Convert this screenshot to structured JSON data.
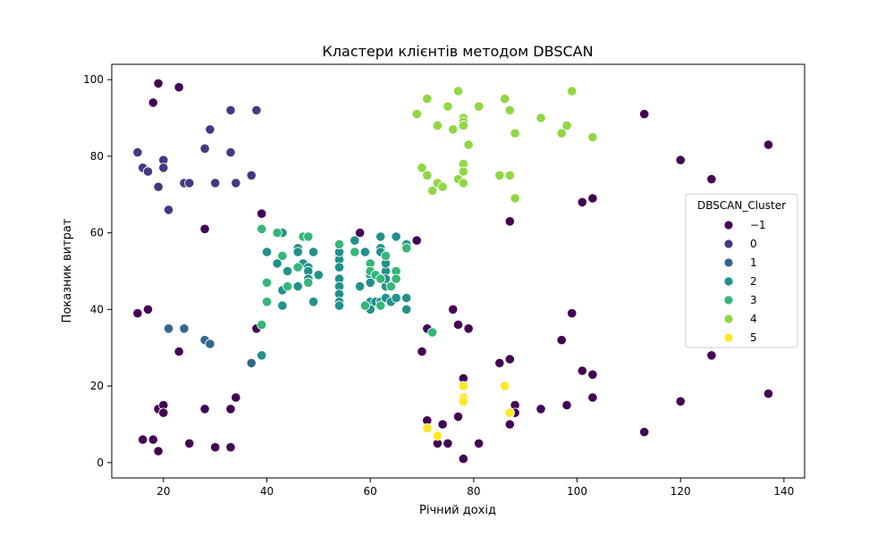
{
  "chart_data": {
    "type": "scatter",
    "title": "Кластери клієнтів методом DBSCAN",
    "xlabel": "Річний дохід",
    "ylabel": "Показник витрат",
    "xlim": [
      10,
      144
    ],
    "ylim": [
      -4,
      104
    ],
    "xticks": [
      20,
      40,
      60,
      80,
      100,
      120,
      140
    ],
    "yticks": [
      0,
      20,
      40,
      60,
      80,
      100
    ],
    "grid": false,
    "legend": {
      "title": "DBSCAN_Cluster",
      "placement": "center-right"
    },
    "series": [
      {
        "name": "−1",
        "color": "#440154",
        "points": [
          [
            15,
            39
          ],
          [
            16,
            6
          ],
          [
            17,
            40
          ],
          [
            18,
            6
          ],
          [
            18,
            94
          ],
          [
            19,
            3
          ],
          [
            19,
            14
          ],
          [
            19,
            99
          ],
          [
            20,
            15
          ],
          [
            20,
            13
          ],
          [
            23,
            98
          ],
          [
            23,
            29
          ],
          [
            25,
            5
          ],
          [
            28,
            14
          ],
          [
            28,
            61
          ],
          [
            30,
            4
          ],
          [
            33,
            4
          ],
          [
            33,
            14
          ],
          [
            34,
            17
          ],
          [
            38,
            35
          ],
          [
            39,
            65
          ],
          [
            58,
            60
          ],
          [
            69,
            58
          ],
          [
            70,
            29
          ],
          [
            71,
            35
          ],
          [
            71,
            11
          ],
          [
            73,
            5
          ],
          [
            74,
            10
          ],
          [
            75,
            5
          ],
          [
            76,
            40
          ],
          [
            77,
            36
          ],
          [
            77,
            12
          ],
          [
            78,
            22
          ],
          [
            78,
            1
          ],
          [
            79,
            35
          ],
          [
            81,
            5
          ],
          [
            85,
            26
          ],
          [
            87,
            27
          ],
          [
            87,
            10
          ],
          [
            87,
            63
          ],
          [
            88,
            15
          ],
          [
            88,
            13
          ],
          [
            93,
            14
          ],
          [
            97,
            32
          ],
          [
            98,
            15
          ],
          [
            99,
            39
          ],
          [
            101,
            68
          ],
          [
            101,
            24
          ],
          [
            103,
            69
          ],
          [
            103,
            23
          ],
          [
            103,
            17
          ],
          [
            113,
            91
          ],
          [
            113,
            8
          ],
          [
            120,
            79
          ],
          [
            120,
            16
          ],
          [
            126,
            74
          ],
          [
            126,
            28
          ],
          [
            137,
            83
          ],
          [
            137,
            18
          ]
        ]
      },
      {
        "name": "0",
        "color": "#443983",
        "points": [
          [
            15,
            81
          ],
          [
            16,
            77
          ],
          [
            17,
            76
          ],
          [
            19,
            72
          ],
          [
            20,
            79
          ],
          [
            20,
            77
          ],
          [
            21,
            66
          ],
          [
            24,
            73
          ],
          [
            25,
            73
          ],
          [
            28,
            82
          ],
          [
            29,
            87
          ],
          [
            30,
            73
          ],
          [
            33,
            92
          ],
          [
            33,
            81
          ],
          [
            34,
            73
          ],
          [
            37,
            75
          ],
          [
            38,
            92
          ]
        ]
      },
      {
        "name": "1",
        "color": "#31688e",
        "points": [
          [
            21,
            35
          ],
          [
            24,
            35
          ],
          [
            28,
            32
          ],
          [
            29,
            31
          ],
          [
            37,
            26
          ]
        ]
      },
      {
        "name": "2",
        "color": "#21918c",
        "points": [
          [
            39,
            28
          ],
          [
            40,
            55
          ],
          [
            42,
            52
          ],
          [
            43,
            60
          ],
          [
            43,
            45
          ],
          [
            43,
            41
          ],
          [
            44,
            50
          ],
          [
            46,
            56
          ],
          [
            46,
            46
          ],
          [
            46,
            55
          ],
          [
            47,
            52
          ],
          [
            48,
            51
          ],
          [
            48,
            50
          ],
          [
            48,
            48
          ],
          [
            48,
            59
          ],
          [
            49,
            42
          ],
          [
            49,
            55
          ],
          [
            50,
            49
          ],
          [
            54,
            54
          ],
          [
            54,
            53
          ],
          [
            54,
            51
          ],
          [
            54,
            48
          ],
          [
            54,
            46
          ],
          [
            54,
            44
          ],
          [
            54,
            42
          ],
          [
            54,
            41
          ],
          [
            54,
            55
          ],
          [
            57,
            58
          ],
          [
            58,
            46
          ],
          [
            59,
            55
          ],
          [
            60,
            49
          ],
          [
            60,
            47
          ],
          [
            60,
            42
          ],
          [
            60,
            40
          ],
          [
            61,
            42
          ],
          [
            62,
            56
          ],
          [
            62,
            59
          ],
          [
            62,
            55
          ],
          [
            62,
            42
          ],
          [
            63,
            50
          ],
          [
            63,
            52
          ],
          [
            63,
            46
          ],
          [
            63,
            43
          ],
          [
            63,
            48
          ],
          [
            64,
            42
          ],
          [
            65,
            43
          ],
          [
            65,
            59
          ],
          [
            67,
            57
          ],
          [
            67,
            56
          ],
          [
            67,
            43
          ],
          [
            67,
            40
          ]
        ]
      },
      {
        "name": "3",
        "color": "#35b779",
        "points": [
          [
            39,
            61
          ],
          [
            39,
            36
          ],
          [
            40,
            47
          ],
          [
            40,
            42
          ],
          [
            42,
            60
          ],
          [
            43,
            54
          ],
          [
            44,
            46
          ],
          [
            46,
            51
          ],
          [
            47,
            59
          ],
          [
            48,
            47
          ],
          [
            48,
            59
          ],
          [
            54,
            57
          ],
          [
            57,
            55
          ],
          [
            59,
            41
          ],
          [
            60,
            52
          ],
          [
            60,
            50
          ],
          [
            61,
            49
          ],
          [
            62,
            41
          ],
          [
            62,
            48
          ],
          [
            63,
            54
          ],
          [
            64,
            46
          ],
          [
            65,
            50
          ],
          [
            65,
            48
          ],
          [
            67,
            56
          ],
          [
            72,
            34
          ]
        ]
      },
      {
        "name": "4",
        "color": "#90d743",
        "points": [
          [
            69,
            91
          ],
          [
            70,
            77
          ],
          [
            71,
            95
          ],
          [
            71,
            75
          ],
          [
            72,
            71
          ],
          [
            73,
            88
          ],
          [
            73,
            73
          ],
          [
            74,
            72
          ],
          [
            75,
            93
          ],
          [
            76,
            87
          ],
          [
            77,
            97
          ],
          [
            77,
            74
          ],
          [
            78,
            90
          ],
          [
            78,
            89
          ],
          [
            78,
            88
          ],
          [
            78,
            78
          ],
          [
            78,
            76
          ],
          [
            78,
            73
          ],
          [
            79,
            83
          ],
          [
            81,
            93
          ],
          [
            85,
            75
          ],
          [
            86,
            95
          ],
          [
            87,
            92
          ],
          [
            87,
            75
          ],
          [
            88,
            86
          ],
          [
            88,
            69
          ],
          [
            93,
            90
          ],
          [
            97,
            86
          ],
          [
            98,
            88
          ],
          [
            99,
            97
          ],
          [
            103,
            85
          ]
        ]
      },
      {
        "name": "5",
        "color": "#fde725",
        "points": [
          [
            71,
            9
          ],
          [
            73,
            7
          ],
          [
            78,
            20
          ],
          [
            78,
            17
          ],
          [
            78,
            16
          ],
          [
            86,
            20
          ],
          [
            87,
            13
          ]
        ]
      }
    ]
  }
}
